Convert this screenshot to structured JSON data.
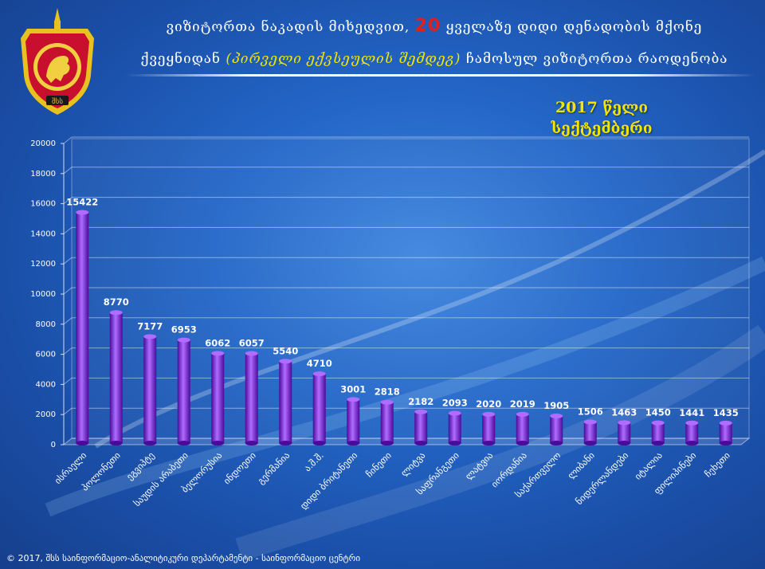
{
  "header": {
    "title_part1": "ვიზიტორთა ნაკადის მიხედვით,",
    "title_number": "20",
    "title_part2": "ყველაზე დიდი დენადობის მქონე",
    "title_line2_part1": "ქვეყნიდან",
    "title_line2_italic": "(პირველი ექვსეულის შემდეგ)",
    "title_line2_part2": "ჩამოსულ ვიზიტორთა რაოდენობა"
  },
  "period": {
    "year": "2017 წელი",
    "month": "სექტემბერი"
  },
  "footer": {
    "text": "© 2017, შსს საინფორმაციო-ანალიტიკური დეპარტამენტი - საინფორმაციო ცენტრი"
  },
  "colors": {
    "bar": "#7a12e6",
    "bar_dark": "#4a0a9a",
    "bar_light": "#b06cff",
    "title_highlight": "#e0201a",
    "year_label": "#f2e600"
  },
  "chart_data": {
    "type": "bar",
    "categories": [
      "ისრაელი",
      "პოლონეთი",
      "ეგვიპტე",
      "საუდის არაბეთი",
      "ბელორუსია",
      "ინდოეთი",
      "გერმანია",
      "ა.შ.შ.",
      "დიდი ბრიტანეთი",
      "ჩინეთი",
      "ლიტვა",
      "საფრანგეთი",
      "ლატვია",
      "იორდანია",
      "საქართველო",
      "ლიბანი",
      "ნიდერლანდები",
      "იტალია",
      "ფილიპინები",
      "ჩეხეთი"
    ],
    "values": [
      15422,
      8770,
      7177,
      6953,
      6062,
      6057,
      5540,
      4710,
      3001,
      2818,
      2182,
      2093,
      2020,
      2019,
      1905,
      1506,
      1463,
      1450,
      1441,
      1435
    ],
    "yticks": [
      "0",
      "2000",
      "4000",
      "6000",
      "8000",
      "10000",
      "12000",
      "14000",
      "16000",
      "18000",
      "20000"
    ],
    "ylim": [
      0,
      20000
    ],
    "grid": true,
    "legend": "none"
  }
}
